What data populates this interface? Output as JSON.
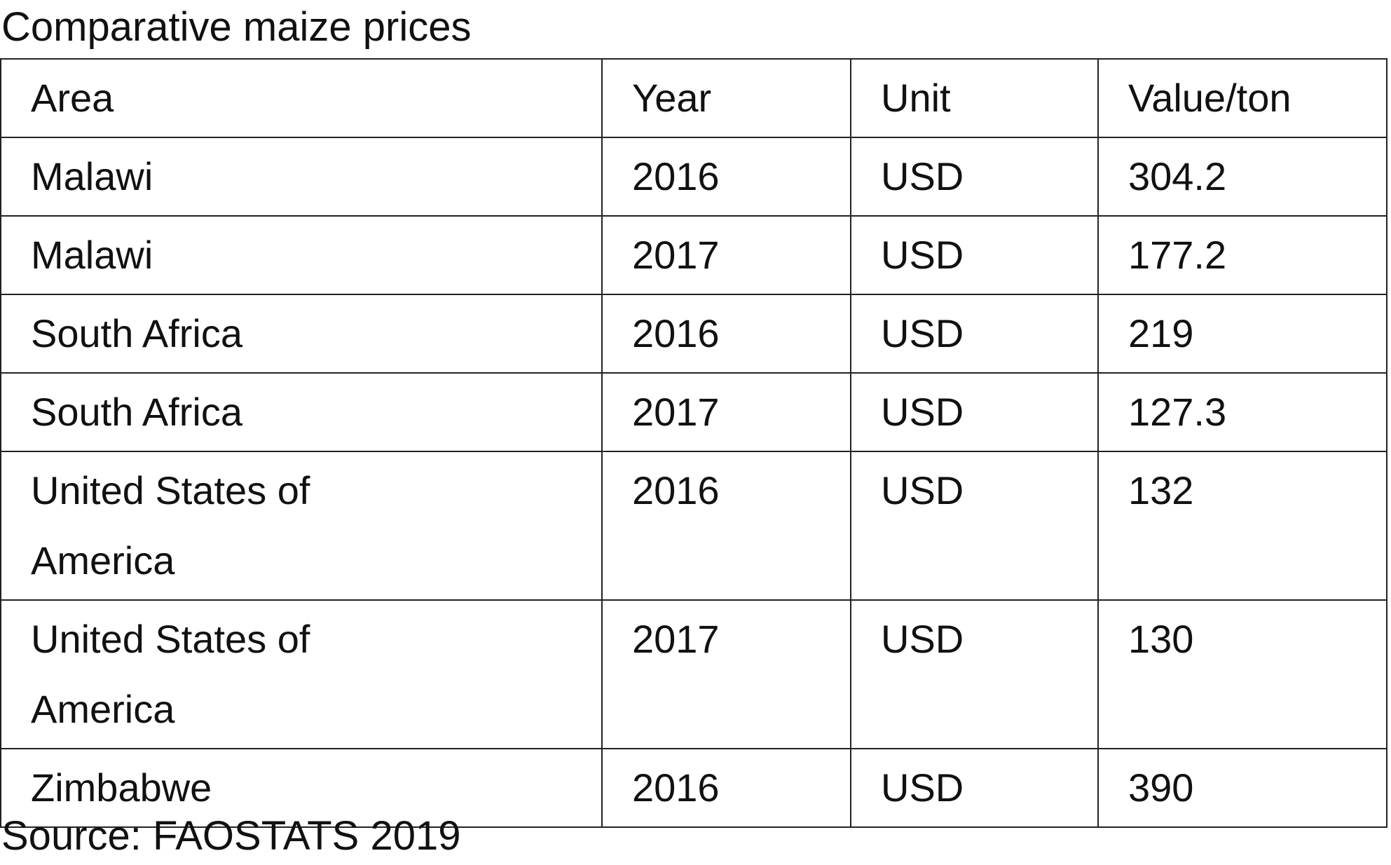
{
  "title": "Comparative maize prices",
  "table": {
    "header": [
      "Area",
      "Year",
      "Unit",
      "Value/ton"
    ],
    "rows": [
      [
        "Malawi",
        2016,
        "USD",
        304.2
      ],
      [
        "Malawi",
        2017,
        "USD",
        177.2
      ],
      [
        "South Africa",
        2016,
        "USD",
        219
      ],
      [
        "South Africa",
        2017,
        "USD",
        127.3
      ],
      [
        "United States of America",
        2016,
        "USD",
        132
      ],
      [
        "United States of America",
        2017,
        "USD",
        130
      ],
      [
        "Zimbabwe",
        2016,
        "USD",
        390
      ]
    ]
  },
  "source": "Source: FAOSTATS 2019"
}
